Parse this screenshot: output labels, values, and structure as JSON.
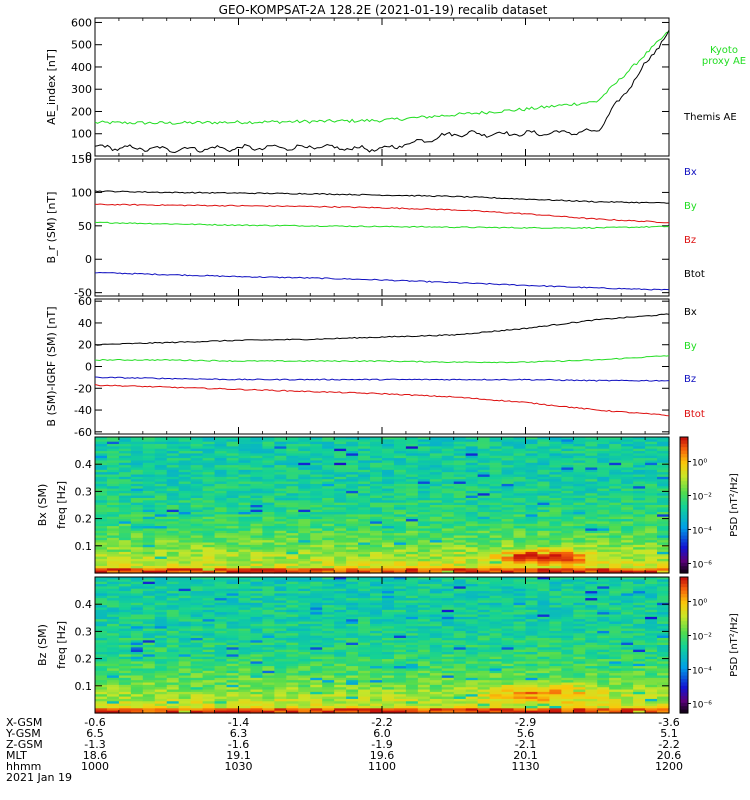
{
  "title": "GEO-KOMPSAT-2A 128.2E (2021-01-19) recalib dataset",
  "colors": {
    "black": "#000000",
    "green": "#22dd22",
    "blue": "#1010c0",
    "red": "#dd1010"
  },
  "chart_data": [
    {
      "type": "line",
      "ylabel": "AE_index [nT]",
      "ylim": [
        0,
        620
      ],
      "yticks": [
        "0",
        "100",
        "200",
        "300",
        "400",
        "500",
        "600"
      ],
      "x": [
        10.0,
        10.25,
        10.5,
        10.75,
        11.0,
        11.25,
        11.5,
        11.75,
        12.0
      ],
      "series": [
        {
          "name": "Kyoto proxy AE",
          "label_lines": [
            "Kyoto",
            "proxy AE"
          ],
          "color": "#22dd22",
          "values": [
            150,
            148,
            152,
            155,
            160,
            185,
            210,
            245,
            560
          ]
        },
        {
          "name": "Themis AE",
          "label_lines": [
            "Themis AE"
          ],
          "color": "#000000",
          "values": [
            40,
            30,
            35,
            40,
            30,
            100,
            100,
            110,
            560
          ]
        }
      ]
    },
    {
      "type": "line",
      "ylabel": "B_r (SM) [nT]",
      "ylim": [
        -55,
        150
      ],
      "yticks": [
        "-50",
        "0",
        "50",
        "100",
        "150"
      ],
      "x": [
        10.0,
        10.25,
        10.5,
        10.75,
        11.0,
        11.25,
        11.5,
        11.75,
        12.0
      ],
      "series": [
        {
          "name": "Bx",
          "color": "#1010c0",
          "values": [
            -20,
            -23,
            -26,
            -28,
            -31,
            -35,
            -39,
            -43,
            -46
          ]
        },
        {
          "name": "By",
          "color": "#22dd22",
          "values": [
            55,
            53,
            51,
            50,
            49,
            48,
            47,
            47,
            49
          ]
        },
        {
          "name": "Bz",
          "color": "#dd1010",
          "values": [
            82,
            81,
            80,
            79,
            77,
            74,
            68,
            60,
            55
          ]
        },
        {
          "name": "Btot",
          "color": "#000000",
          "values": [
            102,
            100,
            99,
            98,
            96,
            94,
            90,
            86,
            84
          ]
        }
      ]
    },
    {
      "type": "line",
      "ylabel": "B (SM)-IGRF (SM) [nT]",
      "ylim": [
        -62,
        62
      ],
      "yticks": [
        "-60",
        "-40",
        "-20",
        "0",
        "20",
        "40",
        "60"
      ],
      "x": [
        10.0,
        10.25,
        10.5,
        10.75,
        11.0,
        11.25,
        11.5,
        11.75,
        12.0
      ],
      "series": [
        {
          "name": "Bx",
          "color": "#000000",
          "values": [
            20,
            22,
            24,
            25,
            27,
            29,
            35,
            43,
            48
          ]
        },
        {
          "name": "By",
          "color": "#22dd22",
          "values": [
            6,
            6,
            5,
            5,
            5,
            4,
            4,
            6,
            10
          ]
        },
        {
          "name": "Bz",
          "color": "#1010c0",
          "values": [
            -10,
            -11,
            -12,
            -12,
            -12,
            -12,
            -12,
            -13,
            -13
          ]
        },
        {
          "name": "Btot",
          "color": "#dd1010",
          "values": [
            -17,
            -19,
            -21,
            -23,
            -25,
            -28,
            -33,
            -40,
            -45
          ]
        }
      ]
    },
    {
      "type": "heatmap",
      "ylabel": "Bx (SM)",
      "ylabel2": "freq [Hz]",
      "ylim": [
        0,
        0.5
      ],
      "yticks": [
        "0.1",
        "0.2",
        "0.3",
        "0.4"
      ],
      "colorbar_label": "PSD [nT²/Hz]",
      "colorbar_ticks": [
        "10⁰",
        "10⁻²",
        "10⁻⁴",
        "10⁻⁶"
      ]
    },
    {
      "type": "heatmap",
      "ylabel": "Bz (SM)",
      "ylabel2": "freq [Hz]",
      "ylim": [
        0,
        0.5
      ],
      "yticks": [
        "0.1",
        "0.2",
        "0.3",
        "0.4"
      ],
      "colorbar_label": "PSD [nT²/Hz]",
      "colorbar_ticks": [
        "10⁰",
        "10⁻²",
        "10⁻⁴",
        "10⁻⁶"
      ]
    }
  ],
  "ephemeris": {
    "row_labels": [
      "X-GSM",
      "Y-GSM",
      "Z-GSM",
      "MLT",
      "hhmm"
    ],
    "columns": [
      {
        "values": [
          "-0.6",
          "6.5",
          "-1.3",
          "18.6",
          "1000"
        ]
      },
      {
        "values": [
          "-1.4",
          "6.3",
          "-1.6",
          "19.1",
          "1030"
        ]
      },
      {
        "values": [
          "-2.2",
          "6.0",
          "-1.9",
          "19.6",
          "1100"
        ]
      },
      {
        "values": [
          "-2.9",
          "5.6",
          "-2.1",
          "20.1",
          "1130"
        ]
      },
      {
        "values": [
          "-3.6",
          "5.1",
          "-2.2",
          "20.6",
          "1200"
        ]
      }
    ],
    "date": "2021 Jan 19"
  }
}
